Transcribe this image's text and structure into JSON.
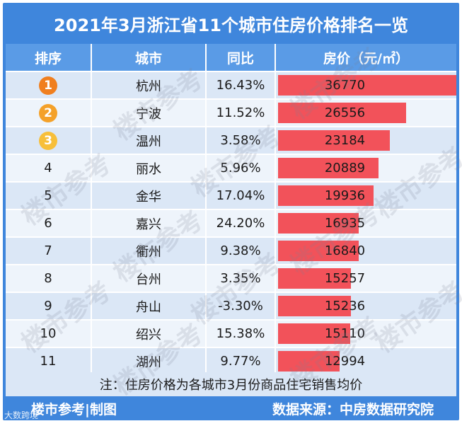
{
  "title": "2021年3月浙江省11个城市住房价格排名一览",
  "chart_data": {
    "type": "table",
    "columns": [
      "排序",
      "城市",
      "同比",
      "房价（元/㎡）"
    ],
    "rows": [
      {
        "rank": "1",
        "city": "杭州",
        "yoy": "16.43%",
        "price": 36770
      },
      {
        "rank": "2",
        "city": "宁波",
        "yoy": "11.52%",
        "price": 26556
      },
      {
        "rank": "3",
        "city": "温州",
        "yoy": "3.58%",
        "price": 23184
      },
      {
        "rank": "4",
        "city": "丽水",
        "yoy": "5.96%",
        "price": 20889
      },
      {
        "rank": "5",
        "city": "金华",
        "yoy": "17.04%",
        "price": 19936
      },
      {
        "rank": "6",
        "city": "嘉兴",
        "yoy": "24.20%",
        "price": 16935
      },
      {
        "rank": "7",
        "city": "衢州",
        "yoy": "9.38%",
        "price": 16840
      },
      {
        "rank": "8",
        "city": "台州",
        "yoy": "3.35%",
        "price": 15257
      },
      {
        "rank": "9",
        "city": "舟山",
        "yoy": "-3.30%",
        "price": 15236
      },
      {
        "rank": "10",
        "city": "绍兴",
        "yoy": "15.38%",
        "price": 15110
      },
      {
        "rank": "11",
        "city": "湖州",
        "yoy": "9.77%",
        "price": 12994
      }
    ],
    "bar_max": 36770
  },
  "colors": {
    "badge_1": "#f07f1f",
    "badge_2": "#f4a12a",
    "badge_3": "#f7bf3a",
    "bar": "#f2525a"
  },
  "note": "注：住房价格为各城市3月份商品住宅销售均价",
  "footer": {
    "left": "楼市参考|制图",
    "right": "数据来源：中房数据研究院"
  },
  "watermark": "楼市参考",
  "corner_mark": "大数跨境"
}
